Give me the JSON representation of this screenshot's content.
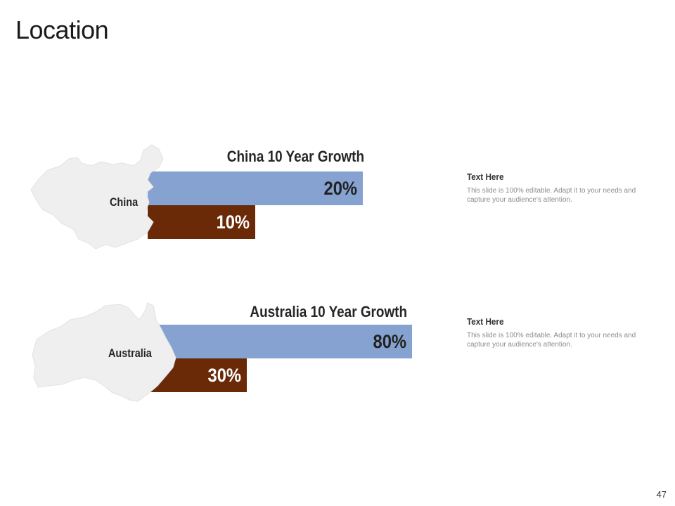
{
  "slide": {
    "title": "Location",
    "page_number": "47"
  },
  "colors": {
    "growth_bar": "#86a2d0",
    "base_bar": "#6b2a07",
    "map_fill": "#efefef"
  },
  "chart_data": [
    {
      "type": "bar",
      "orientation": "horizontal",
      "title": "China 10 Year Growth",
      "map_label": "China",
      "bars": [
        {
          "value": 20,
          "label": "20%",
          "color": "#86a2d0"
        },
        {
          "value": 10,
          "label": "10%",
          "color": "#6b2a07"
        }
      ],
      "xlim": [
        0,
        100
      ]
    },
    {
      "type": "bar",
      "orientation": "horizontal",
      "title": "Australia 10 Year Growth",
      "map_label": "Australia",
      "bars": [
        {
          "value": 80,
          "label": "80%",
          "color": "#86a2d0"
        },
        {
          "value": 30,
          "label": "30%",
          "color": "#6b2a07"
        }
      ],
      "xlim": [
        0,
        100
      ]
    }
  ],
  "text_blocks": [
    {
      "heading": "Text Here",
      "body": "This slide is 100% editable. Adapt it to your needs and capture your audience's attention."
    },
    {
      "heading": "Text Here",
      "body": "This slide is 100% editable. Adapt it to your needs and capture your audience's attention."
    }
  ]
}
